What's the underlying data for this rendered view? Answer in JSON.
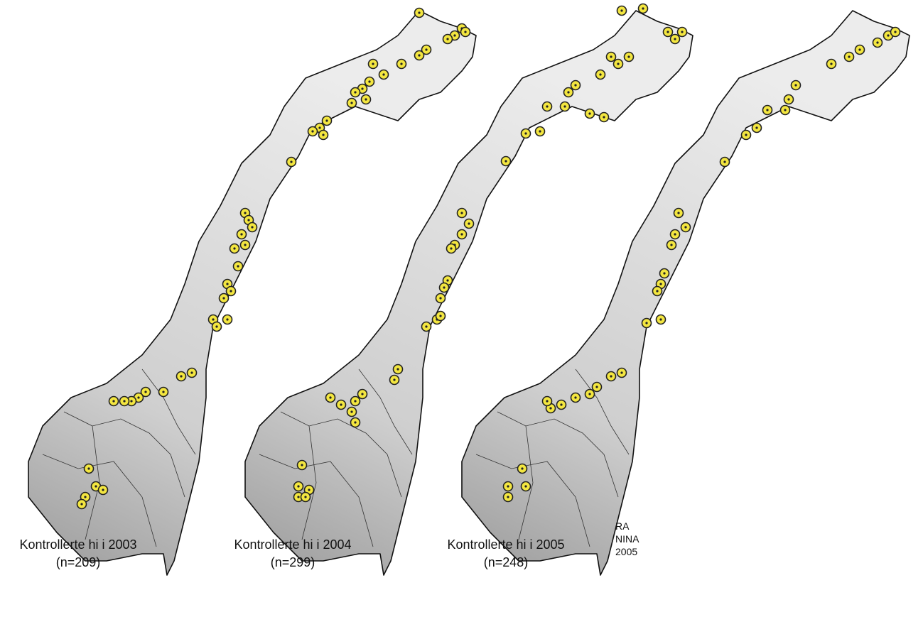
{
  "maps": [
    {
      "caption": "Kontrollerte hi i 2003",
      "count": "(n=209)"
    },
    {
      "caption": "Kontrollerte hi i 2004",
      "count": "(n=299)"
    },
    {
      "caption": "Kontrollerte hi i 2005",
      "count": "(n=248)"
    }
  ],
  "credit": [
    "RA",
    "NINA",
    "2005"
  ]
}
